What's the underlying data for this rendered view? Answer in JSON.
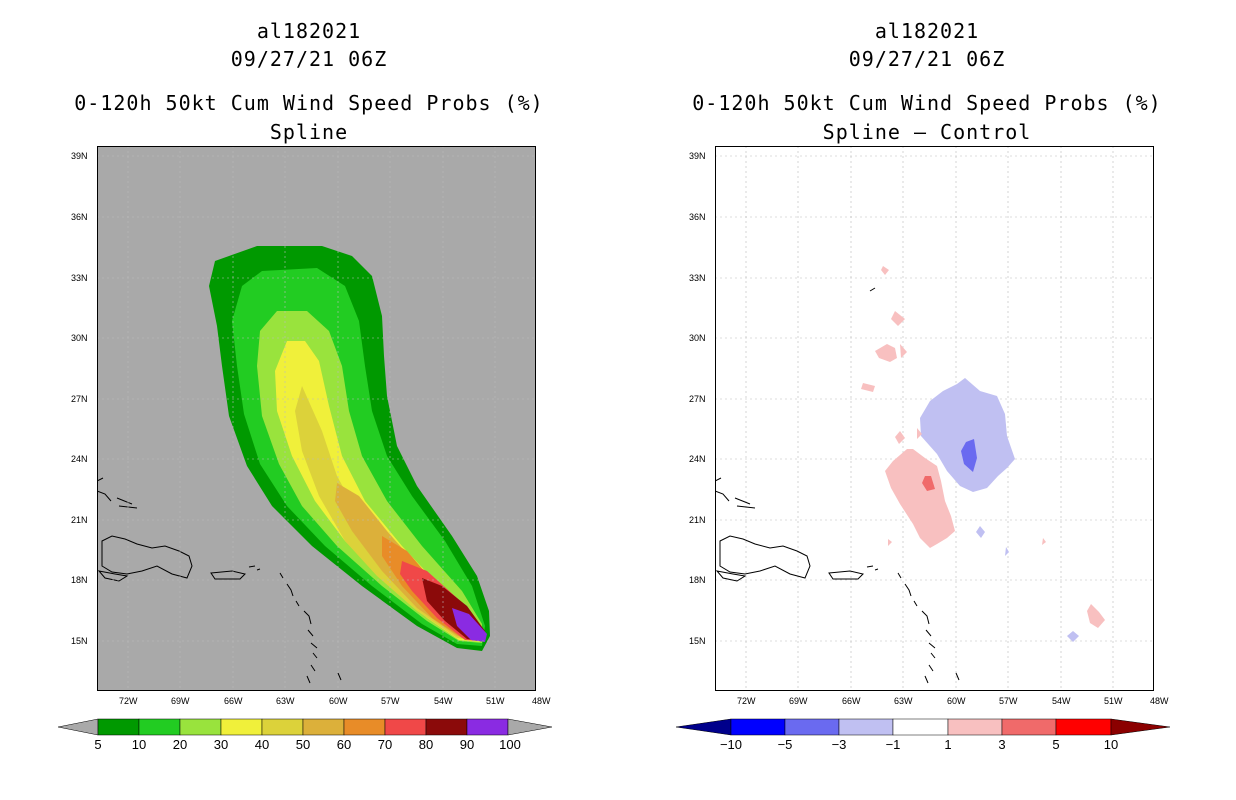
{
  "left": {
    "storm_id": "al182021",
    "datetime": "09/27/21 06Z",
    "product": "0-120h 50kt Cum Wind Speed Probs (%)",
    "subtitle": "Spline",
    "colorbar": {
      "labels": [
        "5",
        "10",
        "20",
        "30",
        "40",
        "50",
        "60",
        "70",
        "80",
        "90",
        "100"
      ],
      "colors": [
        "#009900",
        "#22cc22",
        "#99e33d",
        "#f0f03a",
        "#dcd23a",
        "#dcb03a",
        "#e88c28",
        "#f04848",
        "#8b0a0a",
        "#8a2be2"
      ]
    }
  },
  "right": {
    "storm_id": "al182021",
    "datetime": "09/27/21 06Z",
    "product": "0-120h 50kt Cum Wind Speed Probs (%)",
    "subtitle": "Spline – Control",
    "colorbar": {
      "labels": [
        "−10",
        "−5",
        "−3",
        "−1",
        "1",
        "3",
        "5",
        "10"
      ],
      "colors": [
        "#00008b",
        "#0000ff",
        "#6a6af0",
        "#c0c0f2",
        "#ffffff",
        "#f8c0c0",
        "#f06a6a",
        "#ff0000",
        "#8b0000"
      ]
    }
  },
  "axes": {
    "lat_labels": [
      "39N",
      "36N",
      "33N",
      "30N",
      "27N",
      "24N",
      "21N",
      "18N",
      "15N"
    ],
    "lon_labels": [
      "72W",
      "69W",
      "66W",
      "63W",
      "60W",
      "57W",
      "54W",
      "51W",
      "48W"
    ]
  }
}
